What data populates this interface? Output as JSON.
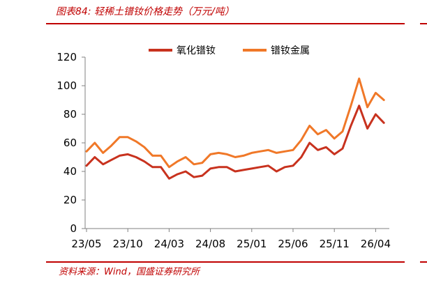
{
  "header": {
    "title": "图表84: 轻稀土镨钕价格走势（万元/吨）"
  },
  "footer": {
    "source": "资料来源：Wind，国盛证券研究所"
  },
  "colors": {
    "accent": "#c00000",
    "series_oxide": "#c8321e",
    "series_metal": "#f07828"
  },
  "chart_data": {
    "type": "line",
    "title": "",
    "xlabel": "",
    "ylabel": "",
    "ylim": [
      0,
      120
    ],
    "yticks": [
      "0",
      "20",
      "40",
      "60",
      "80",
      "100",
      "120"
    ],
    "xticks": [
      "23/05",
      "23/10",
      "24/03",
      "24/08",
      "25/01",
      "25/06",
      "25/11",
      "26/04"
    ],
    "grid": false,
    "legend_position": "top",
    "x_months": [
      "23/05",
      "23/06",
      "23/07",
      "23/08",
      "23/09",
      "23/10",
      "23/11",
      "23/12",
      "24/01",
      "24/02",
      "24/03",
      "24/04",
      "24/05",
      "24/06",
      "24/07",
      "24/08",
      "24/09",
      "24/10",
      "24/11",
      "24/12",
      "25/01",
      "25/02",
      "25/03",
      "25/04",
      "25/05",
      "25/06",
      "25/07",
      "25/08",
      "25/09",
      "25/10",
      "25/11",
      "25/12",
      "26/01",
      "26/02",
      "26/03",
      "26/04",
      "26/05"
    ],
    "series": [
      {
        "name": "氧化镨钕",
        "values": [
          44,
          50,
          45,
          48,
          51,
          52,
          50,
          47,
          43,
          43,
          35,
          38,
          40,
          36,
          37,
          42,
          43,
          43,
          40,
          41,
          42,
          43,
          44,
          40,
          43,
          44,
          50,
          60,
          55,
          57,
          52,
          56,
          72,
          86,
          70,
          80,
          74
        ]
      },
      {
        "name": "镨钕金属",
        "values": [
          54,
          60,
          53,
          58,
          64,
          64,
          61,
          57,
          51,
          51,
          43,
          47,
          50,
          45,
          46,
          52,
          53,
          52,
          50,
          51,
          53,
          54,
          55,
          53,
          54,
          55,
          62,
          72,
          66,
          69,
          63,
          68,
          86,
          105,
          85,
          95,
          90
        ]
      }
    ]
  }
}
